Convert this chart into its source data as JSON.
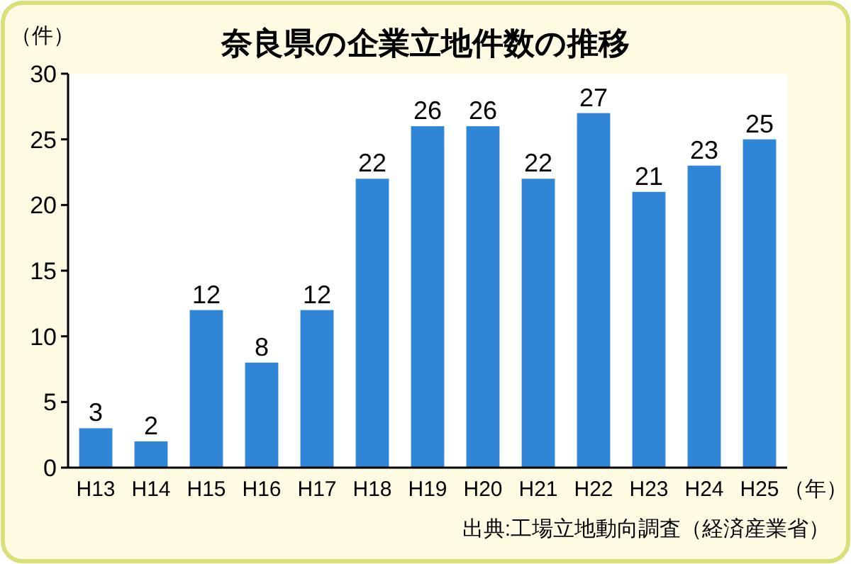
{
  "chart_data": {
    "type": "bar",
    "title": "奈良県の企業立地件数の推移",
    "ylabel": "（件）",
    "xlabel": "（年）",
    "categories": [
      "H13",
      "H14",
      "H15",
      "H16",
      "H17",
      "H18",
      "H19",
      "H20",
      "H21",
      "H22",
      "H23",
      "H24",
      "H25"
    ],
    "values": [
      3,
      2,
      12,
      8,
      12,
      22,
      26,
      26,
      22,
      27,
      21,
      23,
      25
    ],
    "color": "#2f86d6",
    "ylim": [
      0,
      30
    ],
    "yticks": [
      0,
      5,
      10,
      15,
      20,
      25,
      30
    ],
    "data_labels": true,
    "annotations": [
      "出典:工場立地動向調査（経済産業省）"
    ]
  }
}
